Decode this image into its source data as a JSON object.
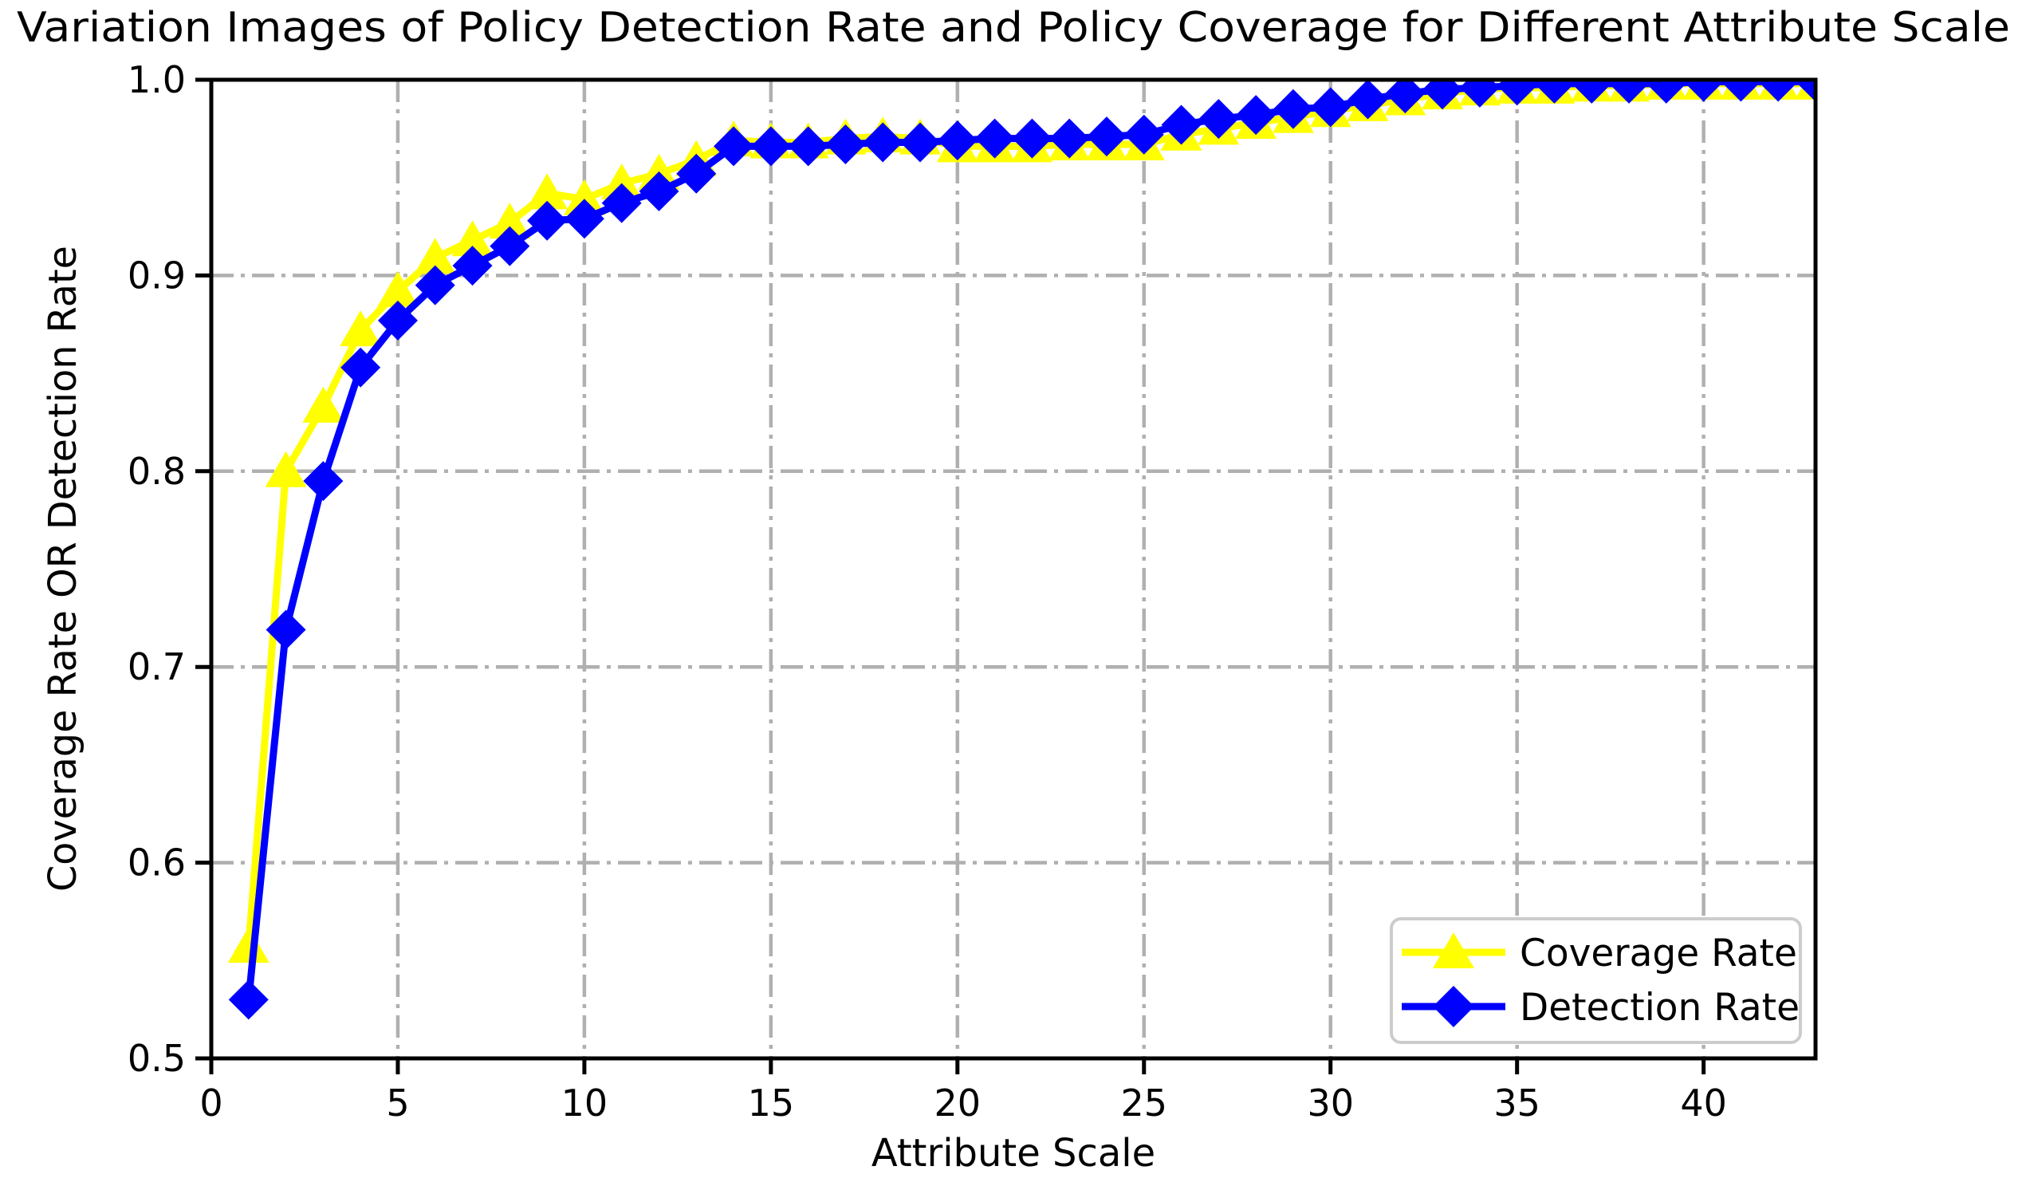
{
  "title": "Variation Images of Policy Detection Rate and Policy Coverage for Different Attribute Scale",
  "chart_data": {
    "type": "line",
    "title": "Variation Images of Policy Detection Rate and Policy Coverage for Different Attribute Scale",
    "xlabel": "Attribute Scale",
    "ylabel": "Coverage Rate OR Detection Rate",
    "xlim": [
      0,
      43
    ],
    "ylim": [
      0.5,
      1.0
    ],
    "xticks": [
      0,
      5,
      10,
      15,
      20,
      25,
      30,
      35,
      40
    ],
    "yticks": [
      0.5,
      0.6,
      0.7,
      0.8,
      0.9,
      1.0
    ],
    "grid": "dash-dot",
    "grid_color": "#b0b0b0",
    "legend_position": "lower-right",
    "x": [
      1,
      2,
      3,
      4,
      5,
      6,
      7,
      8,
      9,
      10,
      11,
      12,
      13,
      14,
      15,
      16,
      17,
      18,
      19,
      20,
      21,
      22,
      23,
      24,
      25,
      26,
      27,
      28,
      29,
      30,
      31,
      32,
      33,
      34,
      35,
      36,
      37,
      38,
      39,
      40,
      41,
      42,
      43
    ],
    "series": [
      {
        "name": "Coverage Rate",
        "color": "#ffff00",
        "marker": "triangle",
        "values": [
          0.557,
          0.8,
          0.833,
          0.872,
          0.892,
          0.909,
          0.918,
          0.927,
          0.942,
          0.939,
          0.947,
          0.952,
          0.959,
          0.969,
          0.968,
          0.968,
          0.97,
          0.971,
          0.97,
          0.966,
          0.966,
          0.966,
          0.967,
          0.967,
          0.967,
          0.972,
          0.975,
          0.978,
          0.981,
          0.984,
          0.987,
          0.99,
          0.993,
          0.995,
          0.996,
          0.996,
          0.997,
          0.997,
          0.998,
          0.998,
          0.998,
          0.998,
          0.998
        ]
      },
      {
        "name": "Detection Rate",
        "color": "#0000ff",
        "marker": "diamond",
        "values": [
          0.53,
          0.719,
          0.795,
          0.853,
          0.877,
          0.895,
          0.905,
          0.915,
          0.928,
          0.929,
          0.937,
          0.943,
          0.952,
          0.966,
          0.966,
          0.966,
          0.967,
          0.968,
          0.968,
          0.969,
          0.97,
          0.97,
          0.97,
          0.971,
          0.972,
          0.977,
          0.98,
          0.982,
          0.985,
          0.986,
          0.99,
          0.993,
          0.995,
          0.996,
          0.997,
          0.998,
          0.998,
          0.998,
          0.998,
          0.999,
          0.999,
          0.999,
          0.999
        ]
      }
    ]
  },
  "legend": {
    "items": [
      {
        "label": "Coverage Rate",
        "icon": "triangle-marker"
      },
      {
        "label": "Detection Rate",
        "icon": "diamond-marker"
      }
    ]
  }
}
